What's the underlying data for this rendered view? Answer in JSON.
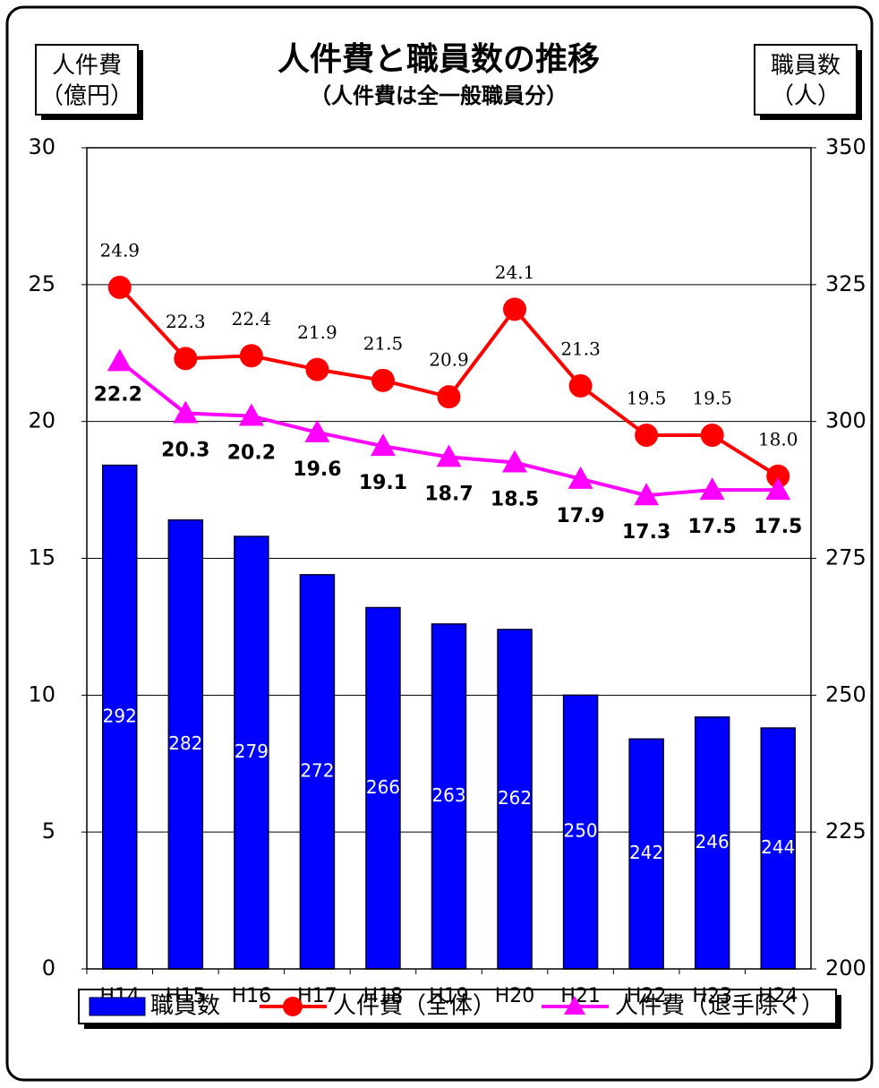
{
  "chart_data": {
    "type": "bar-line",
    "title": "人件費と職員数の推移",
    "subtitle": "（人件費は全一般職員分）",
    "y_label": [
      "人件費",
      "（億円）"
    ],
    "y2_label": [
      "職員数",
      "（人）"
    ],
    "categories": [
      "H14",
      "H15",
      "H16",
      "H17",
      "H18",
      "H19",
      "H20",
      "H21",
      "H22",
      "H23",
      "H24"
    ],
    "ylim": [
      0,
      30
    ],
    "yticks": [
      0,
      5,
      10,
      15,
      20,
      25,
      30
    ],
    "y2lim": [
      200,
      350
    ],
    "y2ticks": [
      200,
      225,
      250,
      275,
      300,
      325,
      350
    ],
    "grid": true,
    "series": [
      {
        "name": "職員数",
        "type": "bar",
        "axis": "y2",
        "color": "#0000ff",
        "values": [
          292,
          282,
          279,
          272,
          266,
          263,
          262,
          250,
          242,
          246,
          244
        ]
      },
      {
        "name": "人件費（全体）",
        "type": "line",
        "marker": "circle",
        "color": "#ff0000",
        "values": [
          24.9,
          22.3,
          22.4,
          21.9,
          21.5,
          20.9,
          24.1,
          21.3,
          19.5,
          19.5,
          18.0
        ],
        "value_labels": [
          "24.9",
          "22.3",
          "22.4",
          "21.9",
          "21.5",
          "20.9",
          "24.1",
          "21.3",
          "19.5",
          "19.5",
          "18.0"
        ]
      },
      {
        "name": "人件費（退手除く）",
        "type": "line",
        "marker": "triangle",
        "color": "#ff00ff",
        "values": [
          22.2,
          20.3,
          20.2,
          19.6,
          19.1,
          18.7,
          18.5,
          17.9,
          17.3,
          17.5,
          17.5
        ]
      }
    ]
  }
}
